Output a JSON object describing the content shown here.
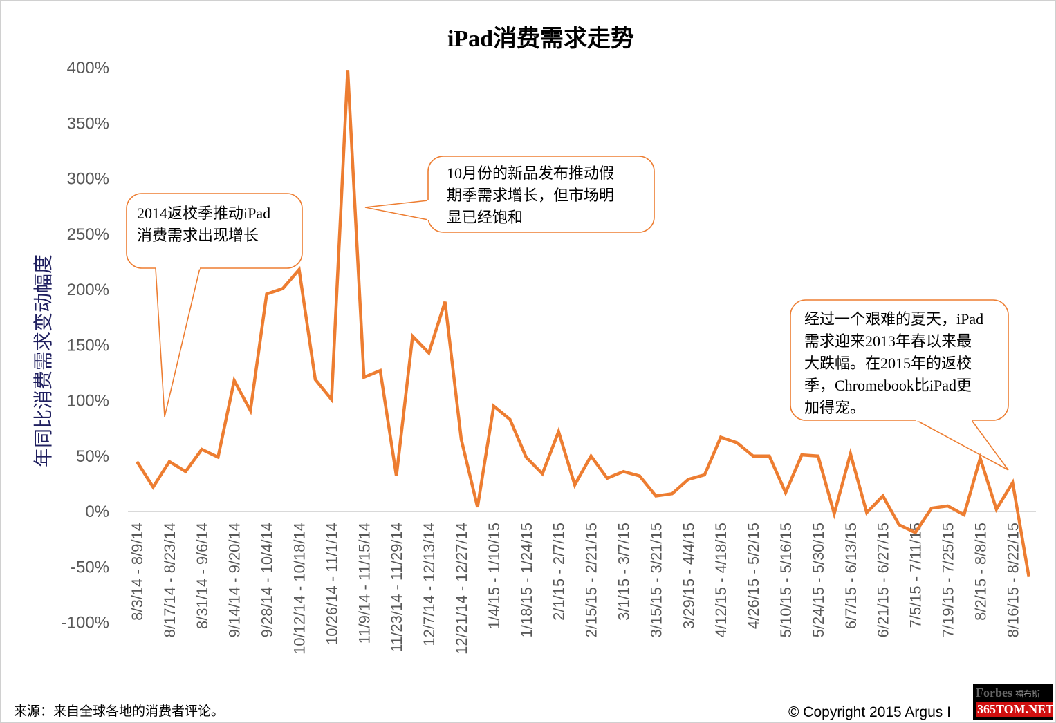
{
  "chart_data": {
    "type": "line",
    "title": "iPad消费需求走势",
    "ylabel": "年同比消费需求变动幅度",
    "xlabel": "",
    "ylim": [
      -100,
      400
    ],
    "yticks": [
      400,
      350,
      300,
      250,
      200,
      150,
      100,
      50,
      0,
      -50,
      -100
    ],
    "ytick_labels": [
      "400%",
      "350%",
      "300%",
      "250%",
      "200%",
      "150%",
      "100%",
      "50%",
      "0%",
      "-50%",
      "-100%"
    ],
    "x_tick_labels": [
      "8/3/14 - 8/9/14",
      "8/17/14 - 8/23/14",
      "8/31/14 - 9/6/14",
      "9/14/14 - 9/20/14",
      "9/28/14 - 10/4/14",
      "10/12/14 - 10/18/14",
      "10/26/14 - 11/1/14",
      "11/9/14 - 11/15/14",
      "11/23/14 - 11/29/14",
      "12/7/14 - 12/13/14",
      "12/21/14 - 12/27/14",
      "1/4/15 - 1/10/15",
      "1/18/15 - 1/24/15",
      "2/1/15 - 2/7/15",
      "2/15/15 - 2/21/15",
      "3/1/15 - 3/7/15",
      "3/15/15 - 3/21/15",
      "3/29/15 - 4/4/15",
      "4/12/15 - 4/18/15",
      "4/26/15 - 5/2/15",
      "5/10/15 - 5/16/15",
      "5/24/15 - 5/30/15",
      "6/7/15 - 6/13/15",
      "6/21/15 - 6/27/15",
      "7/5/15 - 7/11/15",
      "7/19/15 - 7/25/15",
      "8/2/15 - 8/8/15",
      "8/16/15 - 8/22/15"
    ],
    "grid": false,
    "series": [
      {
        "name": "年同比消费需求变动幅度",
        "color": "#ED7D31",
        "values": [
          45,
          22,
          45,
          36,
          56,
          49,
          118,
          91,
          196,
          201,
          218,
          119,
          101,
          398,
          121,
          127,
          32,
          158,
          143,
          189,
          65,
          4,
          95,
          83,
          49,
          34,
          72,
          24,
          50,
          30,
          36,
          32,
          14,
          16,
          29,
          33,
          67,
          62,
          50,
          50,
          17,
          51,
          50,
          -2,
          52,
          -1,
          14,
          -12,
          -19,
          3,
          5,
          -3,
          48,
          2,
          26,
          -59
        ]
      }
    ],
    "annotations": [
      {
        "lines": [
          "2014返校季推动iPad",
          "消费需求出现增长"
        ],
        "points_to_index": 2
      },
      {
        "lines": [
          "10月份的新品发布推动假",
          "期季需求增长，但市场明",
          "显已经饱和"
        ],
        "points_to_index": 13
      },
      {
        "lines": [
          "经过一个艰难的夏天，iPad",
          "需求迎来2013年春以来最",
          "大跌幅。在2015年的返校",
          "季，Chromebook比iPad更",
          "加得宠。"
        ],
        "points_to_index": 54
      }
    ]
  },
  "footer": {
    "source": "来源：来自全球各地的消费者评论。",
    "copyright": "© Copyright 2015 Argus I",
    "watermark_cn": "福布斯",
    "watermark_en": "Forbes",
    "watermark_site": "365TOM.NET"
  }
}
